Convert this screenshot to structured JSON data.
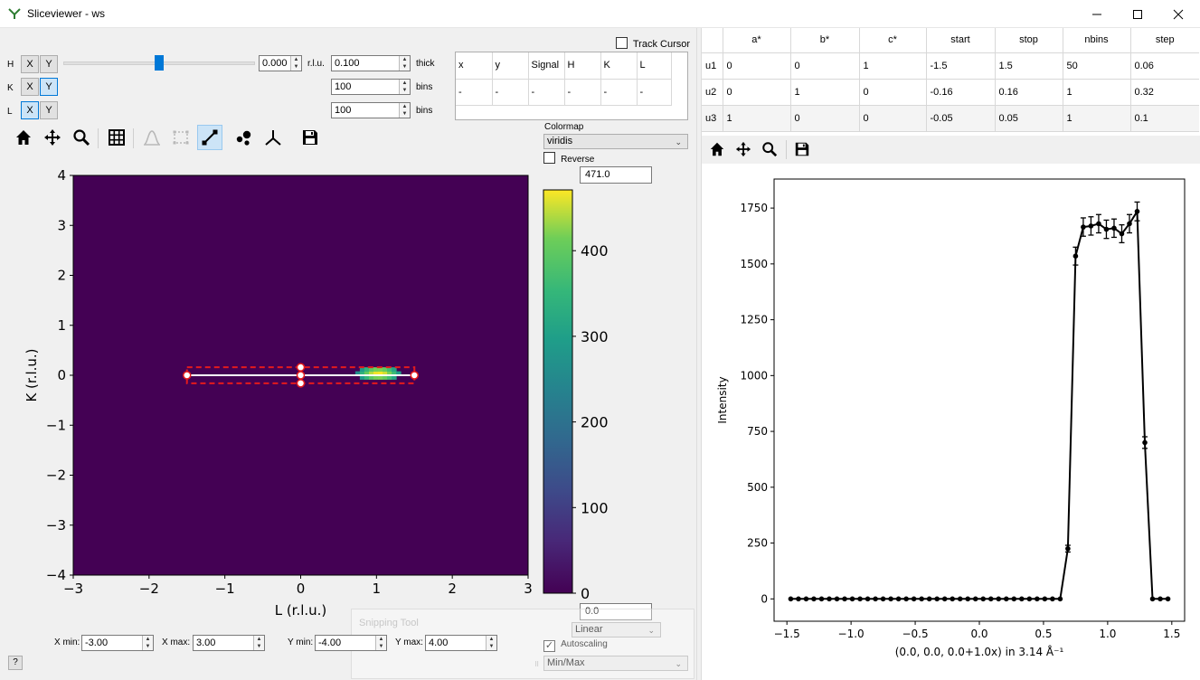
{
  "window": {
    "title": "Sliceviewer - ws"
  },
  "dimensions": [
    {
      "name": "H",
      "x": "X",
      "y": "Y",
      "value": "0.000",
      "unit": "r.l.u.",
      "param": "0.100",
      "param_label": "thick",
      "slider_fraction": 0.5
    },
    {
      "name": "K",
      "x": "X",
      "y": "Y",
      "param": "100",
      "param_label": "bins"
    },
    {
      "name": "L",
      "x": "X",
      "y": "Y",
      "param": "100",
      "param_label": "bins"
    }
  ],
  "track_cursor": {
    "label": "Track Cursor",
    "checked": false
  },
  "cursor_table": {
    "headers": [
      "x",
      "y",
      "Signal",
      "H",
      "K",
      "L"
    ],
    "values": [
      "-",
      "-",
      "-",
      "-",
      "-",
      "-"
    ]
  },
  "toolbar_icons": [
    "home-icon",
    "pan-icon",
    "zoom-icon",
    "grid-icon",
    "line-plots-icon",
    "region-selection-icon",
    "cut-line-icon",
    "peaks-icon",
    "nonorthogonal-axes-icon",
    "save-icon"
  ],
  "colormap": {
    "label": "Colormap",
    "name": "viridis",
    "reverse_label": "Reverse",
    "reverse_checked": false,
    "max": "471.0",
    "min": "0.0",
    "scale": "Linear",
    "autoscaling_label": "Autoscaling",
    "autoscaling_checked": true,
    "autoscale_mode": "Min/Max"
  },
  "colorbar": {
    "ticks": [
      "0",
      "100",
      "200",
      "300",
      "400"
    ],
    "tick_values": [
      0,
      100,
      200,
      300,
      400
    ],
    "vmax": 471
  },
  "limits": {
    "xmin_label": "X min:",
    "xmin": "-3.00",
    "xmax_label": "X max:",
    "xmax": "3.00",
    "ymin_label": "Y min:",
    "ymin": "-4.00",
    "ymax_label": "Y max:",
    "ymax": "4.00"
  },
  "help_label": "?",
  "ghost_tooltip": "Snipping Tool",
  "chart_data": [
    {
      "type": "heatmap",
      "xlabel": "L (r.l.u.)",
      "ylabel": "K (r.l.u.)",
      "xlim": [
        -3,
        3
      ],
      "ylim": [
        -4,
        4
      ],
      "xticks": [
        "−3",
        "−2",
        "−1",
        "0",
        "1",
        "2",
        "3"
      ],
      "xtick_values": [
        -3,
        -2,
        -1,
        0,
        1,
        2,
        3
      ],
      "yticks": [
        "−4",
        "−3",
        "−2",
        "−1",
        "0",
        "1",
        "2",
        "3",
        "4"
      ],
      "ytick_values": [
        -4,
        -3,
        -2,
        -1,
        0,
        1,
        2,
        3,
        4
      ],
      "colormap": "viridis",
      "background_value": 0,
      "blob": {
        "center": [
          1.0,
          0.0
        ],
        "radius_x": 0.28,
        "radius_y": 0.16,
        "peak": 471
      },
      "cut_line": {
        "start": [
          -1.5,
          0.0
        ],
        "end": [
          1.5,
          0.0
        ],
        "half_width": 0.16
      }
    },
    {
      "type": "line",
      "xlabel": "(0.0, 0.0, 0.0+1.0x) in 3.14 Å⁻¹",
      "ylabel": "Intensity",
      "xlim": [
        -1.6,
        1.6
      ],
      "ylim": [
        -100,
        1880
      ],
      "xticks": [
        "−1.5",
        "−1.0",
        "−0.5",
        "0.0",
        "0.5",
        "1.0",
        "1.5"
      ],
      "xtick_values": [
        -1.5,
        -1.0,
        -0.5,
        0.0,
        0.5,
        1.0,
        1.5
      ],
      "yticks": [
        "0",
        "250",
        "500",
        "750",
        "1000",
        "1250",
        "1500",
        "1750"
      ],
      "ytick_values": [
        0,
        250,
        500,
        750,
        1000,
        1250,
        1500,
        1750
      ],
      "x": [
        -1.47,
        -1.41,
        -1.35,
        -1.29,
        -1.23,
        -1.17,
        -1.11,
        -1.05,
        -0.99,
        -0.93,
        -0.87,
        -0.81,
        -0.75,
        -0.69,
        -0.63,
        -0.57,
        -0.51,
        -0.45,
        -0.39,
        -0.33,
        -0.27,
        -0.21,
        -0.15,
        -0.09,
        -0.03,
        0.03,
        0.09,
        0.15,
        0.21,
        0.27,
        0.33,
        0.39,
        0.45,
        0.51,
        0.57,
        0.63,
        0.69,
        0.75,
        0.81,
        0.87,
        0.93,
        0.99,
        1.05,
        1.11,
        1.17,
        1.23,
        1.29,
        1.35,
        1.41,
        1.47
      ],
      "y": [
        0,
        0,
        0,
        0,
        0,
        0,
        0,
        0,
        0,
        0,
        0,
        0,
        0,
        0,
        0,
        0,
        0,
        0,
        0,
        0,
        0,
        0,
        0,
        0,
        0,
        0,
        0,
        0,
        0,
        0,
        0,
        0,
        0,
        0,
        0,
        0,
        225,
        1535,
        1665,
        1670,
        1680,
        1655,
        1660,
        1635,
        1680,
        1735,
        700,
        0,
        0,
        0
      ],
      "yerr": [
        0,
        0,
        0,
        0,
        0,
        0,
        0,
        0,
        0,
        0,
        0,
        0,
        0,
        0,
        0,
        0,
        0,
        0,
        0,
        0,
        0,
        0,
        0,
        0,
        0,
        0,
        0,
        0,
        0,
        0,
        0,
        0,
        0,
        0,
        0,
        0,
        15,
        40,
        41,
        41,
        41,
        41,
        41,
        40,
        41,
        42,
        26,
        0,
        0,
        0
      ]
    }
  ],
  "lineplot_toolbar_icons": [
    "home-icon",
    "pan-icon",
    "zoom-icon",
    "save-icon"
  ],
  "projection_table": {
    "headers": [
      "",
      "a*",
      "b*",
      "c*",
      "start",
      "stop",
      "nbins",
      "step"
    ],
    "rows": [
      [
        "u1",
        "0",
        "0",
        "1",
        "-1.5",
        "1.5",
        "50",
        "0.06"
      ],
      [
        "u2",
        "0",
        "1",
        "0",
        "-0.16",
        "0.16",
        "1",
        "0.32"
      ],
      [
        "u3",
        "1",
        "0",
        "0",
        "-0.05",
        "0.05",
        "1",
        "0.1"
      ]
    ]
  }
}
